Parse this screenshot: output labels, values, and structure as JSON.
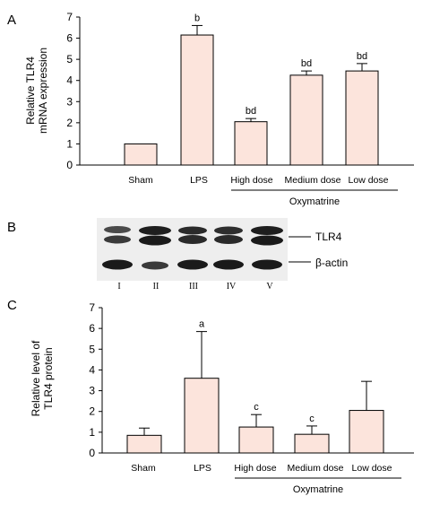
{
  "chart_data": [
    {
      "panel": "A",
      "type": "bar",
      "ylabel_lines": [
        "Relative TLR4",
        "mRNA expression"
      ],
      "ylim": [
        0,
        7
      ],
      "yticks": [
        "0",
        "1",
        "2",
        "3",
        "4",
        "5",
        "6",
        "7"
      ],
      "categories": [
        "Sham",
        "LPS",
        "High dose",
        "Medium dose",
        "Low dose"
      ],
      "values": [
        1.0,
        6.15,
        2.05,
        4.25,
        4.45
      ],
      "errors": [
        0.0,
        0.45,
        0.15,
        0.2,
        0.35
      ],
      "significance": [
        "",
        "b",
        "bd",
        "bd",
        "bd"
      ],
      "group_label": "Oxymatrine",
      "bar_color": "#fce4dc"
    },
    {
      "panel": "B",
      "type": "blot",
      "bands": [
        "TLR4",
        "β-actin"
      ],
      "lanes": [
        "I",
        "II",
        "III",
        "IV",
        "V"
      ]
    },
    {
      "panel": "C",
      "type": "bar",
      "ylabel_lines": [
        "Relative level of",
        "TLR4 protein"
      ],
      "ylim": [
        0,
        7
      ],
      "yticks": [
        "0",
        "1",
        "2",
        "3",
        "4",
        "5",
        "6",
        "7"
      ],
      "categories": [
        "Sham",
        "LPS",
        "High dose",
        "Medium dose",
        "Low dose"
      ],
      "values": [
        0.85,
        3.6,
        1.25,
        0.9,
        2.05
      ],
      "errors": [
        0.35,
        2.25,
        0.6,
        0.4,
        1.4
      ],
      "significance": [
        "",
        "a",
        "c",
        "c",
        ""
      ],
      "group_label": "Oxymatrine",
      "bar_color": "#fce4dc"
    }
  ]
}
